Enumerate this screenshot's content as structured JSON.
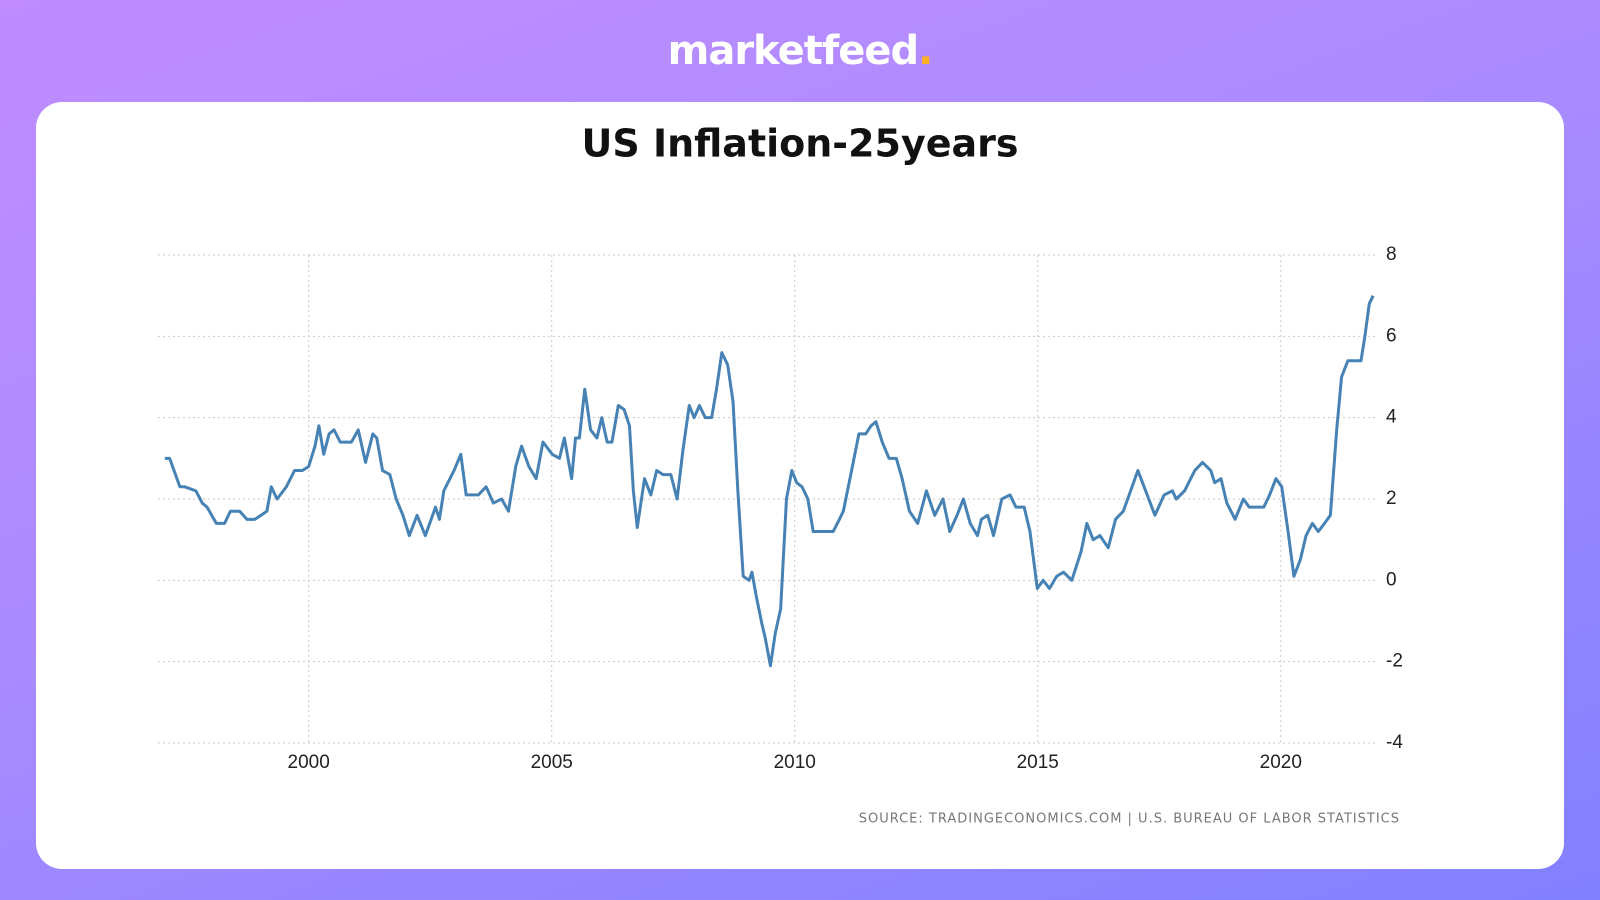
{
  "brand": {
    "name": "marketfeed",
    "dot": "."
  },
  "chart_data": {
    "type": "line",
    "title": "US Inflation-25years",
    "source": "SOURCE: TRADINGECONOMICS.COM | U.S. BUREAU OF LABOR STATISTICS",
    "x": [
      1997.04,
      1997.14,
      1997.35,
      1997.45,
      1997.68,
      1997.81,
      1997.91,
      1998.1,
      1998.27,
      1998.39,
      1998.58,
      1998.73,
      1998.89,
      1999.02,
      1999.14,
      1999.23,
      1999.35,
      1999.54,
      1999.71,
      1999.87,
      2000.0,
      2000.13,
      2000.21,
      2000.31,
      2000.42,
      2000.52,
      2000.65,
      2000.88,
      2001.02,
      2001.17,
      2001.32,
      2001.4,
      2001.52,
      2001.67,
      2001.8,
      2001.94,
      2002.07,
      2002.23,
      2002.4,
      2002.61,
      2002.69,
      2002.78,
      2002.99,
      2003.13,
      2003.24,
      2003.49,
      2003.65,
      2003.8,
      2003.97,
      2004.11,
      2004.26,
      2004.38,
      2004.53,
      2004.68,
      2004.82,
      2005.01,
      2005.16,
      2005.26,
      2005.41,
      2005.49,
      2005.57,
      2005.68,
      2005.8,
      2005.93,
      2006.03,
      2006.14,
      2006.24,
      2006.37,
      2006.49,
      2006.6,
      2006.68,
      2006.76,
      2006.91,
      2007.04,
      2007.16,
      2007.29,
      2007.45,
      2007.58,
      2007.7,
      2007.83,
      2007.93,
      2008.04,
      2008.16,
      2008.29,
      2008.39,
      2008.5,
      2008.62,
      2008.73,
      2008.83,
      2008.94,
      2009.06,
      2009.12,
      2009.21,
      2009.33,
      2009.39,
      2009.5,
      2009.6,
      2009.71,
      2009.83,
      2009.94,
      2010.04,
      2010.15,
      2010.27,
      2010.38,
      2010.5,
      2010.63,
      2010.79,
      2010.92,
      2011.0,
      2011.17,
      2011.32,
      2011.46,
      2011.57,
      2011.67,
      2011.8,
      2011.94,
      2012.09,
      2012.21,
      2012.36,
      2012.53,
      2012.71,
      2012.88,
      2013.05,
      2013.19,
      2013.34,
      2013.47,
      2013.61,
      2013.76,
      2013.84,
      2013.97,
      2014.09,
      2014.26,
      2014.43,
      2014.55,
      2014.72,
      2014.84,
      2014.99,
      2015.11,
      2015.24,
      2015.39,
      2015.53,
      2015.7,
      2015.89,
      2016.01,
      2016.14,
      2016.28,
      2016.45,
      2016.6,
      2016.76,
      2016.91,
      2017.06,
      2017.22,
      2017.41,
      2017.6,
      2017.77,
      2017.85,
      2018.02,
      2018.23,
      2018.39,
      2018.56,
      2018.64,
      2018.77,
      2018.89,
      2019.06,
      2019.23,
      2019.35,
      2019.48,
      2019.65,
      2019.77,
      2019.9,
      2020.02,
      2020.15,
      2020.27,
      2020.4,
      2020.52,
      2020.65,
      2020.77,
      2020.9,
      2021.02,
      2021.15,
      2021.25,
      2021.38,
      2021.5,
      2021.65,
      2021.73,
      2021.82,
      2021.9
    ],
    "series": [
      {
        "name": "US Inflation",
        "color": "#4682b4",
        "values": [
          3.0,
          3.0,
          2.3,
          2.3,
          2.2,
          1.9,
          1.8,
          1.4,
          1.4,
          1.7,
          1.7,
          1.5,
          1.5,
          1.6,
          1.7,
          2.3,
          2.0,
          2.3,
          2.7,
          2.7,
          2.8,
          3.3,
          3.8,
          3.1,
          3.6,
          3.7,
          3.4,
          3.4,
          3.7,
          2.9,
          3.6,
          3.5,
          2.7,
          2.6,
          2.0,
          1.6,
          1.1,
          1.6,
          1.1,
          1.8,
          1.5,
          2.2,
          2.7,
          3.1,
          2.1,
          2.1,
          2.3,
          1.9,
          2.0,
          1.7,
          2.8,
          3.3,
          2.8,
          2.5,
          3.4,
          3.1,
          3.0,
          3.5,
          2.5,
          3.5,
          3.5,
          4.7,
          3.7,
          3.5,
          4.0,
          3.4,
          3.4,
          4.3,
          4.2,
          3.8,
          2.2,
          1.3,
          2.5,
          2.1,
          2.7,
          2.6,
          2.6,
          2.0,
          3.2,
          4.3,
          4.0,
          4.3,
          4.0,
          4.0,
          4.7,
          5.6,
          5.3,
          4.4,
          2.2,
          0.1,
          0.0,
          0.2,
          -0.4,
          -1.1,
          -1.4,
          -2.1,
          -1.3,
          -0.7,
          2.0,
          2.7,
          2.4,
          2.3,
          2.0,
          1.2,
          1.2,
          1.2,
          1.2,
          1.5,
          1.7,
          2.7,
          3.6,
          3.6,
          3.8,
          3.9,
          3.4,
          3.0,
          3.0,
          2.5,
          1.7,
          1.4,
          2.2,
          1.6,
          2.0,
          1.2,
          1.6,
          2.0,
          1.4,
          1.1,
          1.5,
          1.6,
          1.1,
          2.0,
          2.1,
          1.8,
          1.8,
          1.2,
          -0.2,
          0.0,
          -0.2,
          0.1,
          0.2,
          0.0,
          0.7,
          1.4,
          1.0,
          1.1,
          0.8,
          1.5,
          1.7,
          2.2,
          2.7,
          2.2,
          1.6,
          2.1,
          2.2,
          2.0,
          2.2,
          2.7,
          2.9,
          2.7,
          2.4,
          2.5,
          1.9,
          1.5,
          2.0,
          1.8,
          1.8,
          1.8,
          2.1,
          2.5,
          2.3,
          1.2,
          0.1,
          0.5,
          1.1,
          1.4,
          1.2,
          1.4,
          1.6,
          3.7,
          5.0,
          5.4,
          5.4,
          5.4,
          6.0,
          6.8,
          7.0
        ]
      }
    ],
    "xlim": [
      1996.9,
      2022.0
    ],
    "xticks": [
      2000,
      2005,
      2010,
      2015,
      2020
    ],
    "ylim": [
      -4,
      8
    ],
    "yticks": [
      -4,
      -2,
      0,
      2,
      4,
      6,
      8
    ],
    "grid": true
  }
}
